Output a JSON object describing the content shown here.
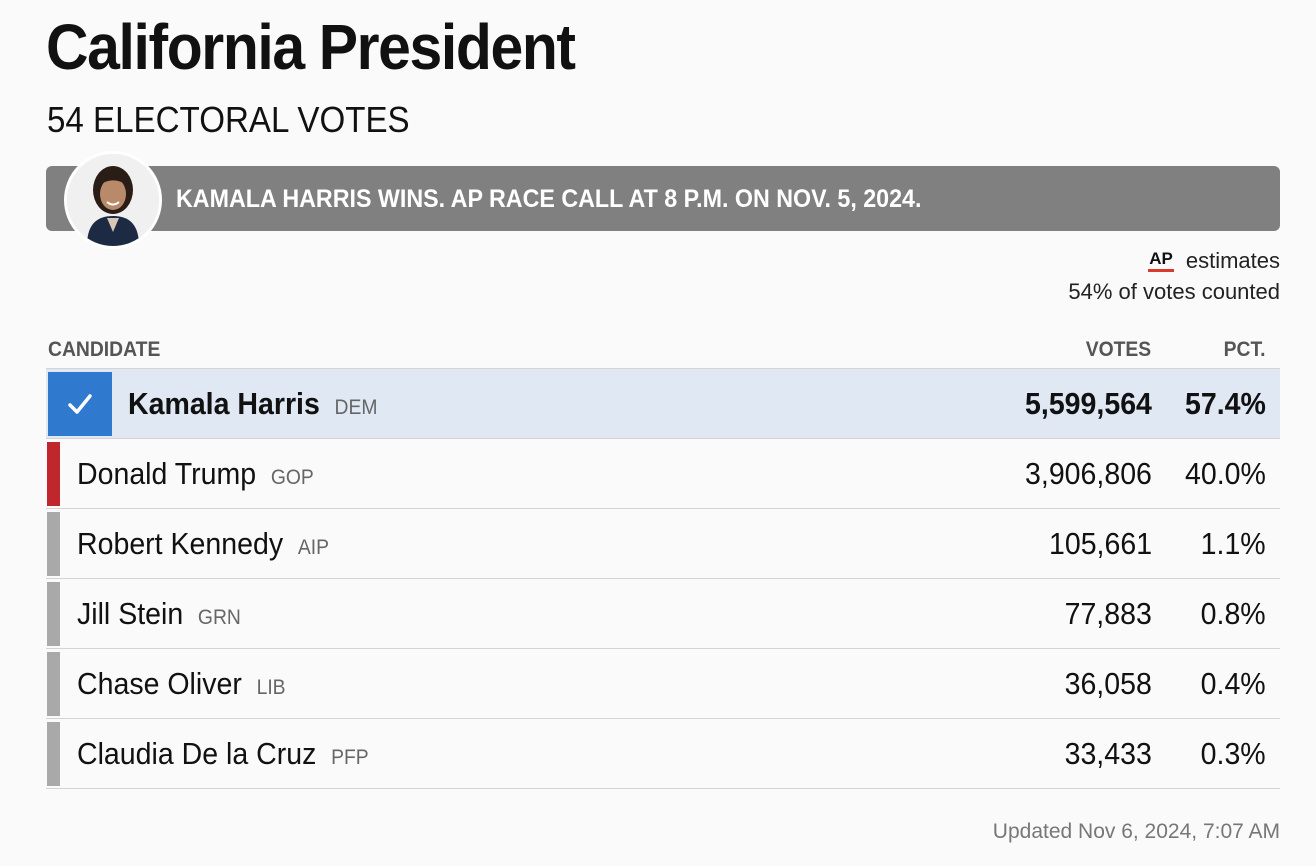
{
  "race": {
    "title": "California President",
    "subtitle": "54 ELECTORAL VOTES"
  },
  "banner": {
    "text": "KAMALA HARRIS WINS. AP RACE CALL AT 8 P.M. ON NOV. 5, 2024.",
    "avatar_icon": "candidate-portrait-kamala-harris"
  },
  "estimates": {
    "logo": "AP",
    "label": "estimates",
    "counted": "54% of votes counted"
  },
  "table": {
    "headers": {
      "candidate": "CANDIDATE",
      "votes": "VOTES",
      "pct": "PCT."
    },
    "rows": [
      {
        "name": "Kamala Harris",
        "party": "DEM",
        "votes": "5,599,564",
        "pct": "57.4%",
        "winner": true,
        "color": "#2f79cf"
      },
      {
        "name": "Donald Trump",
        "party": "GOP",
        "votes": "3,906,806",
        "pct": "40.0%",
        "winner": false,
        "color": "#c0272d"
      },
      {
        "name": "Robert Kennedy",
        "party": "AIP",
        "votes": "105,661",
        "pct": "1.1%",
        "winner": false,
        "color": "#a9a9a9"
      },
      {
        "name": "Jill Stein",
        "party": "GRN",
        "votes": "77,883",
        "pct": "0.8%",
        "winner": false,
        "color": "#a9a9a9"
      },
      {
        "name": "Chase Oliver",
        "party": "LIB",
        "votes": "36,058",
        "pct": "0.4%",
        "winner": false,
        "color": "#a9a9a9"
      },
      {
        "name": "Claudia De la Cruz",
        "party": "PFP",
        "votes": "33,433",
        "pct": "0.3%",
        "winner": false,
        "color": "#a9a9a9"
      }
    ]
  },
  "footer": {
    "updated": "Updated Nov 6, 2024, 7:07 AM"
  },
  "colors": {
    "banner_bg": "#808080",
    "winner_row_bg": "#dfe8f3",
    "ap_underline": "#d93a2b"
  }
}
